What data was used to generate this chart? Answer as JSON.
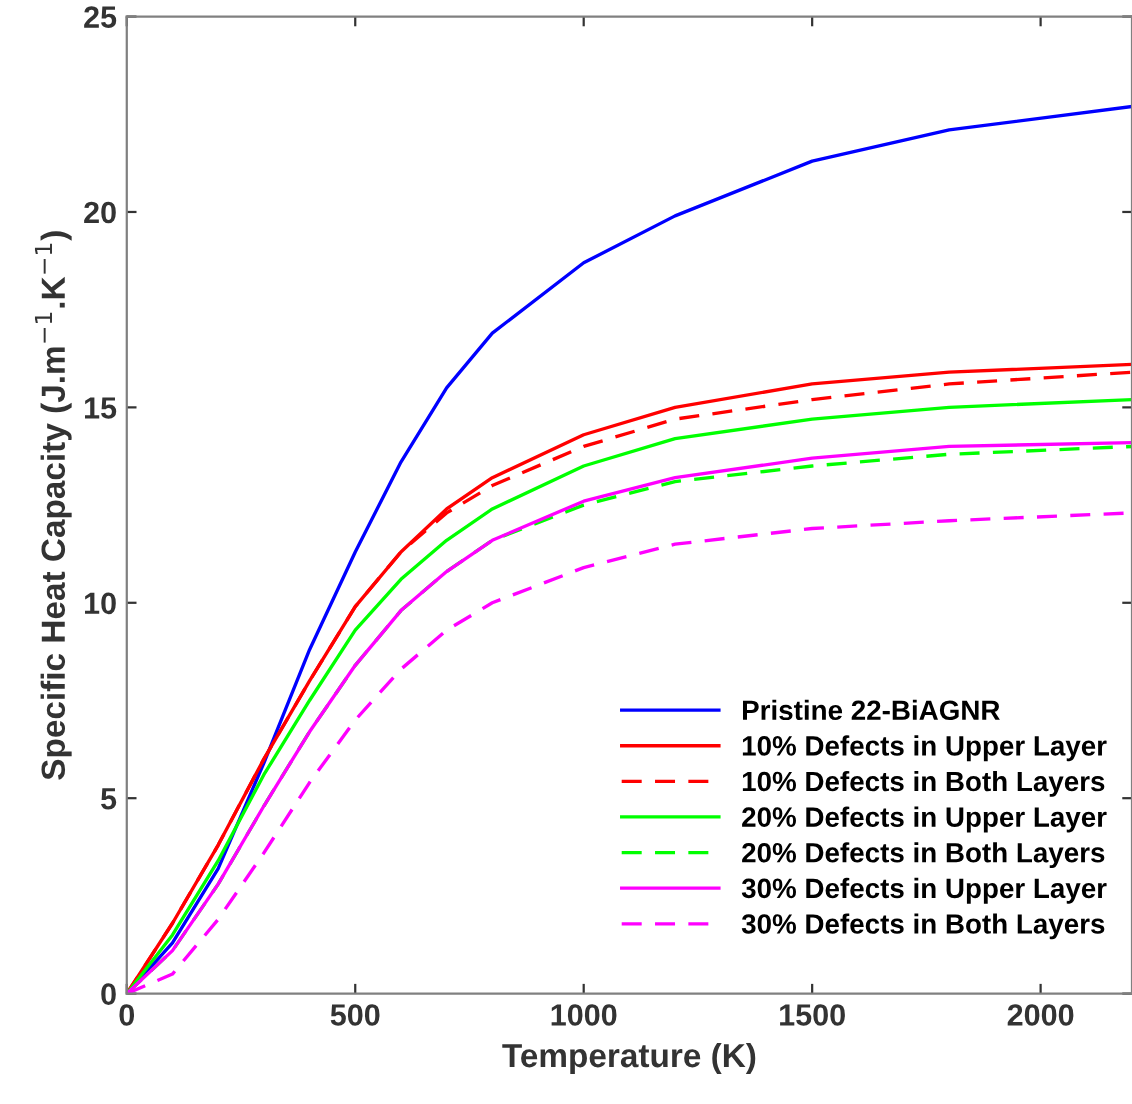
{
  "chart_data": {
    "type": "line",
    "xlabel": "Temperature (K)",
    "ylabel": "Specific Heat Capacity (J.m$^{−1}$.K$^{−1}$)",
    "x": [
      0,
      100,
      200,
      300,
      400,
      500,
      600,
      700,
      800,
      1000,
      1200,
      1500,
      1800,
      2200
    ],
    "series": [
      {
        "name": "Pristine 22-BiAGNR",
        "color": "#0000ff",
        "line_style": "solid",
        "values": [
          0,
          1.3,
          3.2,
          5.9,
          8.8,
          11.3,
          13.6,
          15.5,
          16.9,
          18.7,
          19.9,
          21.3,
          22.1,
          22.7
        ]
      },
      {
        "name": "10% Defects in Upper Layer",
        "color": "#ff0000",
        "line_style": "solid",
        "values": [
          0,
          1.8,
          3.8,
          6.0,
          8.0,
          9.9,
          11.3,
          12.4,
          13.2,
          14.3,
          15.0,
          15.6,
          15.9,
          16.1
        ]
      },
      {
        "name": "10% Defects in Both Layers",
        "color": "#ff0000",
        "line_style": "dashed",
        "values": [
          0,
          1.8,
          3.8,
          6.0,
          8.0,
          9.9,
          11.3,
          12.3,
          13.0,
          14.0,
          14.7,
          15.2,
          15.6,
          15.9
        ]
      },
      {
        "name": "20% Defects in Upper Layer",
        "color": "#00ff00",
        "line_style": "solid",
        "values": [
          0,
          1.5,
          3.4,
          5.6,
          7.5,
          9.3,
          10.6,
          11.6,
          12.4,
          13.5,
          14.2,
          14.7,
          15.0,
          15.2
        ]
      },
      {
        "name": "20% Defects in Both Layers",
        "color": "#00ff00",
        "line_style": "dashed",
        "values": [
          0,
          1.1,
          2.8,
          4.8,
          6.7,
          8.4,
          9.8,
          10.8,
          11.6,
          12.5,
          13.1,
          13.5,
          13.8,
          14.0
        ]
      },
      {
        "name": "30% Defects in Upper Layer",
        "color": "#ff00ff",
        "line_style": "solid",
        "values": [
          0,
          1.1,
          2.8,
          4.8,
          6.7,
          8.4,
          9.8,
          10.8,
          11.6,
          12.6,
          13.2,
          13.7,
          14.0,
          14.1
        ]
      },
      {
        "name": "30% Defects in Both Layers",
        "color": "#ff00ff",
        "line_style": "dashed",
        "values": [
          0,
          0.5,
          1.9,
          3.6,
          5.4,
          7.0,
          8.3,
          9.3,
          10.0,
          10.9,
          11.5,
          11.9,
          12.1,
          12.3
        ]
      }
    ],
    "xlim": [
      0,
      2200
    ],
    "ylim": [
      0,
      25
    ],
    "xticks": [
      0,
      500,
      1000,
      1500,
      2000
    ],
    "yticks": [
      0,
      5,
      10,
      15,
      20,
      25
    ],
    "grid": false,
    "legend": "bottom right"
  }
}
